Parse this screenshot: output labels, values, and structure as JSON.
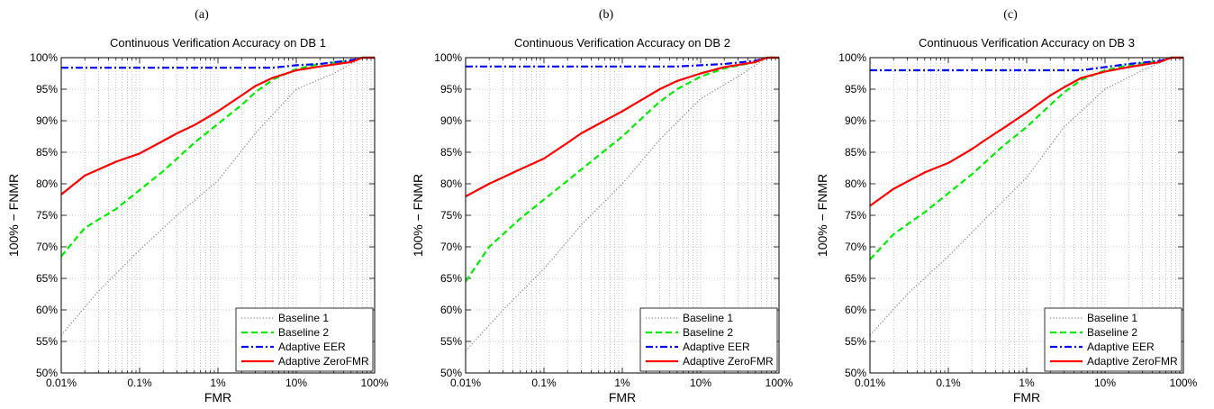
{
  "chart_data": [
    {
      "type": "line",
      "caption": "(a)",
      "title": "Continuous Verification Accuracy on DB 1",
      "xlabel": "FMR",
      "ylabel": "100% − FNMR",
      "x_scale": "log",
      "xlim": [
        0.01,
        100
      ],
      "ylim": [
        50,
        100
      ],
      "xticks": [
        0.01,
        0.1,
        1,
        10,
        100
      ],
      "xtick_labels": [
        "0.01%",
        "0.1%",
        "1%",
        "10%",
        "100%"
      ],
      "yticks": [
        50,
        55,
        60,
        65,
        70,
        75,
        80,
        85,
        90,
        95,
        100
      ],
      "ytick_labels": [
        "50%",
        "55%",
        "60%",
        "65%",
        "70%",
        "75%",
        "80%",
        "85%",
        "90%",
        "95%",
        "100%"
      ],
      "grid": true,
      "legend_position": "bottom-right",
      "series": [
        {
          "name": "Baseline 1",
          "color": "#888888",
          "style": "dotted",
          "x": [
            0.01,
            0.03,
            0.1,
            0.3,
            1,
            3,
            10,
            30,
            70,
            100
          ],
          "y": [
            56,
            63,
            69.5,
            75,
            80.5,
            88,
            95,
            97.5,
            100,
            100
          ]
        },
        {
          "name": "Baseline 2",
          "color": "#00ee00",
          "style": "dashed",
          "x": [
            0.01,
            0.02,
            0.05,
            0.1,
            0.2,
            0.5,
            1,
            2,
            3,
            5,
            10,
            20,
            50,
            70,
            100
          ],
          "y": [
            68.5,
            73,
            76,
            79,
            82,
            86.5,
            89.5,
            92.5,
            94.5,
            96.5,
            98.2,
            99,
            99.5,
            100,
            100
          ]
        },
        {
          "name": "Adaptive EER",
          "color": "#0000ff",
          "style": "dashdot",
          "x": [
            0.01,
            0.1,
            1,
            5,
            10,
            20,
            50,
            70,
            100
          ],
          "y": [
            98.4,
            98.4,
            98.4,
            98.4,
            98.8,
            99,
            99.6,
            100,
            100
          ]
        },
        {
          "name": "Adaptive ZeroFMR",
          "color": "#ff0000",
          "style": "solid",
          "x": [
            0.01,
            0.02,
            0.05,
            0.1,
            0.2,
            0.3,
            0.5,
            1,
            2,
            3,
            5,
            10,
            20,
            50,
            70,
            100
          ],
          "y": [
            78.3,
            81.3,
            83.5,
            84.8,
            86.8,
            88,
            89.3,
            91.5,
            94,
            95.5,
            96.8,
            98,
            98.6,
            99.3,
            100,
            100
          ]
        }
      ]
    },
    {
      "type": "line",
      "caption": "(b)",
      "title": "Continuous Verification Accuracy on DB 2",
      "xlabel": "FMR",
      "ylabel": "100% − FNMR",
      "x_scale": "log",
      "xlim": [
        0.01,
        100
      ],
      "ylim": [
        50,
        100
      ],
      "xticks": [
        0.01,
        0.1,
        1,
        10,
        100
      ],
      "xtick_labels": [
        "0.01%",
        "0.1%",
        "1%",
        "10%",
        "100%"
      ],
      "yticks": [
        50,
        55,
        60,
        65,
        70,
        75,
        80,
        85,
        90,
        95,
        100
      ],
      "ytick_labels": [
        "50%",
        "55%",
        "60%",
        "65%",
        "70%",
        "75%",
        "80%",
        "85%",
        "90%",
        "95%",
        "100%"
      ],
      "grid": true,
      "legend_position": "bottom-right",
      "series": [
        {
          "name": "Baseline 1",
          "color": "#888888",
          "style": "dotted",
          "x": [
            0.01,
            0.03,
            0.1,
            0.3,
            1,
            3,
            10,
            30,
            70,
            100
          ],
          "y": [
            53.5,
            60,
            66.5,
            73.5,
            80,
            87,
            93.5,
            97,
            100,
            100
          ]
        },
        {
          "name": "Baseline 2",
          "color": "#00ee00",
          "style": "dashed",
          "x": [
            0.01,
            0.02,
            0.05,
            0.1,
            0.2,
            0.5,
            1,
            2,
            3,
            5,
            10,
            20,
            50,
            70,
            100
          ],
          "y": [
            64.5,
            70,
            74.5,
            77.5,
            80.5,
            84.5,
            87.5,
            91,
            93,
            95,
            97,
            98.3,
            99.3,
            100,
            100
          ]
        },
        {
          "name": "Adaptive EER",
          "color": "#0000ff",
          "style": "dashdot",
          "x": [
            0.01,
            0.1,
            1,
            5,
            10,
            20,
            50,
            70,
            100
          ],
          "y": [
            98.6,
            98.6,
            98.6,
            98.6,
            98.8,
            99,
            99.5,
            100,
            100
          ]
        },
        {
          "name": "Adaptive ZeroFMR",
          "color": "#ff0000",
          "style": "solid",
          "x": [
            0.01,
            0.02,
            0.05,
            0.1,
            0.2,
            0.3,
            0.5,
            1,
            2,
            3,
            5,
            10,
            20,
            50,
            70,
            100
          ],
          "y": [
            78,
            80,
            82.3,
            84,
            86.5,
            88,
            89.5,
            91.5,
            93.7,
            95,
            96.3,
            97.5,
            98.5,
            99.3,
            100,
            100
          ]
        }
      ]
    },
    {
      "type": "line",
      "caption": "(c)",
      "title": "Continuous Verification Accuracy on DB 3",
      "xlabel": "FMR",
      "ylabel": "100% − FNMR",
      "x_scale": "log",
      "xlim": [
        0.01,
        100
      ],
      "ylim": [
        50,
        100
      ],
      "xticks": [
        0.01,
        0.1,
        1,
        10,
        100
      ],
      "xtick_labels": [
        "0.01%",
        "0.1%",
        "1%",
        "10%",
        "100%"
      ],
      "yticks": [
        50,
        55,
        60,
        65,
        70,
        75,
        80,
        85,
        90,
        95,
        100
      ],
      "ytick_labels": [
        "50%",
        "55%",
        "60%",
        "65%",
        "70%",
        "75%",
        "80%",
        "85%",
        "90%",
        "95%",
        "100%"
      ],
      "grid": true,
      "legend_position": "bottom-right",
      "series": [
        {
          "name": "Baseline 1",
          "color": "#888888",
          "style": "dotted",
          "x": [
            0.01,
            0.03,
            0.1,
            0.3,
            1,
            3,
            10,
            30,
            70,
            100
          ],
          "y": [
            56,
            62.5,
            68.5,
            74.5,
            81,
            89,
            95,
            98,
            100,
            100
          ]
        },
        {
          "name": "Baseline 2",
          "color": "#00ee00",
          "style": "dashed",
          "x": [
            0.01,
            0.02,
            0.05,
            0.1,
            0.2,
            0.5,
            1,
            2,
            3,
            5,
            10,
            20,
            50,
            70,
            100
          ],
          "y": [
            68,
            72,
            75.5,
            78.5,
            81.5,
            86,
            89,
            92.5,
            94.5,
            96.5,
            98,
            98.8,
            99.5,
            100,
            100
          ]
        },
        {
          "name": "Adaptive EER",
          "color": "#0000ff",
          "style": "dashdot",
          "x": [
            0.01,
            0.1,
            1,
            5,
            10,
            20,
            50,
            70,
            100
          ],
          "y": [
            98,
            98,
            98,
            98,
            98.5,
            99,
            99.5,
            100,
            100
          ]
        },
        {
          "name": "Adaptive ZeroFMR",
          "color": "#ff0000",
          "style": "solid",
          "x": [
            0.01,
            0.02,
            0.05,
            0.1,
            0.2,
            0.3,
            0.5,
            1,
            2,
            3,
            5,
            10,
            20,
            50,
            70,
            100
          ],
          "y": [
            76.5,
            79.2,
            81.8,
            83.3,
            85.5,
            87,
            88.8,
            91.3,
            94,
            95.3,
            96.8,
            97.8,
            98.5,
            99.3,
            100,
            100
          ]
        }
      ]
    }
  ]
}
